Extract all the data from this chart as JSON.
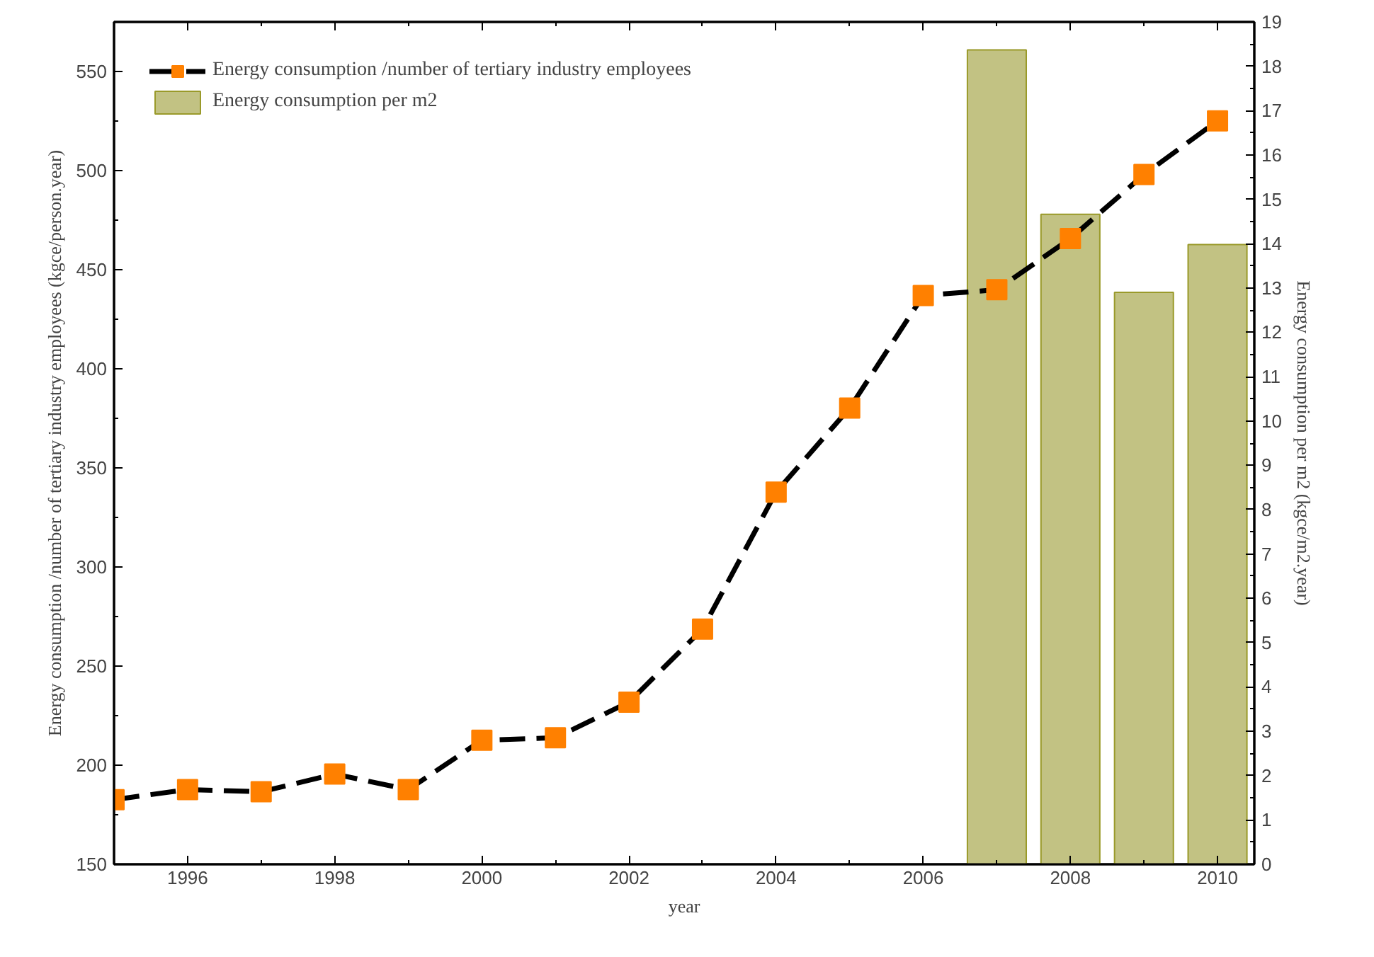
{
  "chart_data": {
    "type": "line",
    "xlabel": "year",
    "ylabel": "Energy consumption /number of tertiary industry employees (kgce/person.year)",
    "y2label": "Energy consumption per m2 (kgce/m2.year)",
    "x": [
      1995,
      1996,
      1997,
      1998,
      1999,
      2000,
      2001,
      2002,
      2003,
      2004,
      2005,
      2006,
      2007,
      2008,
      2009,
      2010
    ],
    "series": [
      {
        "name": "Energy consumption /number of tertiary industry employees",
        "color": "#ff8000",
        "marker": "square",
        "line_style": "dashed",
        "values": [
          182.6,
          187.7,
          186.6,
          195.5,
          187.7,
          212.6,
          213.8,
          231.8,
          268.7,
          337.8,
          380.2,
          437,
          439.9,
          465.7,
          498,
          525.1
        ]
      },
      {
        "name": "Energy consumption per m2",
        "type": "bar",
        "axis": "y2",
        "color": "#c2c283",
        "x": [
          2007,
          2008,
          2009,
          2010
        ],
        "values": [
          18.37,
          14.66,
          12.9,
          13.98
        ]
      }
    ],
    "xlim": [
      1995,
      2010.5
    ],
    "xticks": [
      1996,
      1998,
      2000,
      2002,
      2004,
      2006,
      2008,
      2010
    ],
    "ylim": [
      150,
      575
    ],
    "yticks": [
      150,
      200,
      250,
      300,
      350,
      400,
      450,
      500,
      550
    ],
    "y2lim": [
      0,
      19
    ],
    "y2ticks": [
      0,
      1,
      2,
      3,
      4,
      5,
      6,
      7,
      8,
      9,
      10,
      11,
      12,
      13,
      14,
      15,
      16,
      17,
      18,
      19
    ],
    "grid": false,
    "legend": "top left"
  }
}
